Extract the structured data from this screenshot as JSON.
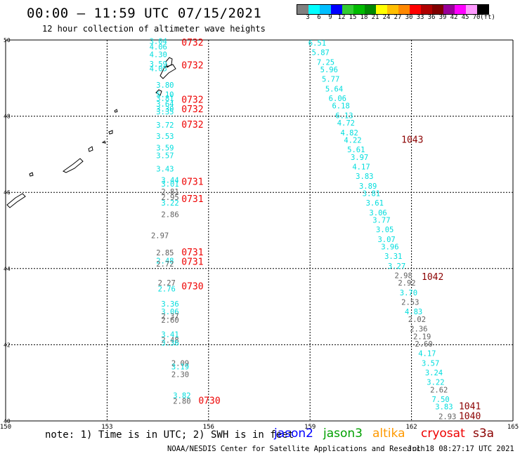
{
  "title": "00:00 – 11:59 UTC 07/15/2021",
  "subtitle": "12 hour collection of altimeter wave heights",
  "colorbar": {
    "colors": [
      "#808080",
      "#00ffff",
      "#00bfff",
      "#0000ff",
      "#32cd32",
      "#00bb00",
      "#008800",
      "#ffff00",
      "#ffbf00",
      "#ff8800",
      "#ff0000",
      "#b00000",
      "#800000",
      "#990099",
      "#ff00ff",
      "#ff99ff",
      "#000000"
    ],
    "labels": [
      "3",
      "6",
      "9",
      "12",
      "15",
      "18",
      "21",
      "24",
      "27",
      "30",
      "33",
      "36",
      "39",
      "42",
      "45",
      "70",
      "(ft)"
    ]
  },
  "axes": {
    "lon_ticks": [
      "150",
      "153",
      "156",
      "159",
      "162",
      "165"
    ],
    "lat_ticks": [
      "50",
      "48",
      "46",
      "44",
      "42",
      "40"
    ]
  },
  "colors": {
    "cyan": "#00dddd",
    "gray": "#606060",
    "red": "#ee0000",
    "darkred": "#8b0000"
  },
  "chart_data": {
    "type": "scatter",
    "xlim": [
      150,
      165
    ],
    "ylim": [
      40,
      50
    ],
    "grid": true,
    "track_labels": [
      {
        "text": "0732",
        "lon": 155.2,
        "lat": 49.85,
        "color": "red"
      },
      {
        "text": "0732",
        "lon": 155.2,
        "lat": 49.25,
        "color": "red"
      },
      {
        "text": "0732",
        "lon": 155.2,
        "lat": 48.35,
        "color": "red"
      },
      {
        "text": "0732",
        "lon": 155.2,
        "lat": 48.1,
        "color": "red"
      },
      {
        "text": "0732",
        "lon": 155.2,
        "lat": 47.7,
        "color": "red"
      },
      {
        "text": "0731",
        "lon": 155.2,
        "lat": 46.2,
        "color": "red"
      },
      {
        "text": "0731",
        "lon": 155.2,
        "lat": 45.75,
        "color": "red"
      },
      {
        "text": "0731",
        "lon": 155.2,
        "lat": 44.35,
        "color": "red"
      },
      {
        "text": "0731",
        "lon": 155.2,
        "lat": 44.1,
        "color": "red"
      },
      {
        "text": "0730",
        "lon": 155.2,
        "lat": 43.45,
        "color": "red"
      },
      {
        "text": "0730",
        "lon": 155.7,
        "lat": 40.45,
        "color": "red"
      },
      {
        "text": "1043",
        "lon": 161.7,
        "lat": 47.3,
        "color": "darkred"
      },
      {
        "text": "1042",
        "lon": 162.3,
        "lat": 43.7,
        "color": "darkred"
      },
      {
        "text": "1041",
        "lon": 163.4,
        "lat": 40.3,
        "color": "darkred"
      },
      {
        "text": "1040",
        "lon": 163.4,
        "lat": 40.05,
        "color": "darkred"
      }
    ],
    "swh_points": [
      {
        "text": "3.04",
        "lon": 154.25,
        "lat": 49.9,
        "color": "cyan"
      },
      {
        "text": "4.06",
        "lon": 154.25,
        "lat": 49.75,
        "color": "cyan"
      },
      {
        "text": "4.30",
        "lon": 154.25,
        "lat": 49.55,
        "color": "cyan"
      },
      {
        "text": "3.59",
        "lon": 154.25,
        "lat": 49.3,
        "color": "cyan"
      },
      {
        "text": "4.05",
        "lon": 154.25,
        "lat": 49.18,
        "color": "cyan"
      },
      {
        "text": "3.80",
        "lon": 154.45,
        "lat": 48.75,
        "color": "cyan"
      },
      {
        "text": "5.10",
        "lon": 154.45,
        "lat": 48.5,
        "color": "cyan"
      },
      {
        "text": "3.81",
        "lon": 154.45,
        "lat": 48.4,
        "color": "cyan"
      },
      {
        "text": "3.64",
        "lon": 154.45,
        "lat": 48.25,
        "color": "cyan"
      },
      {
        "text": "3.30",
        "lon": 154.45,
        "lat": 48.12,
        "color": "cyan"
      },
      {
        "text": "3.35",
        "lon": 154.45,
        "lat": 48.05,
        "color": "cyan"
      },
      {
        "text": "3.72",
        "lon": 154.45,
        "lat": 47.7,
        "color": "cyan"
      },
      {
        "text": "3.53",
        "lon": 154.45,
        "lat": 47.4,
        "color": "cyan"
      },
      {
        "text": "3.59",
        "lon": 154.45,
        "lat": 47.1,
        "color": "cyan"
      },
      {
        "text": "3.57",
        "lon": 154.45,
        "lat": 46.9,
        "color": "cyan"
      },
      {
        "text": "3.43",
        "lon": 154.45,
        "lat": 46.55,
        "color": "cyan"
      },
      {
        "text": "3.44",
        "lon": 154.6,
        "lat": 46.25,
        "color": "cyan"
      },
      {
        "text": "3.01",
        "lon": 154.6,
        "lat": 46.15,
        "color": "cyan"
      },
      {
        "text": "2.81",
        "lon": 154.6,
        "lat": 45.95,
        "color": "gray"
      },
      {
        "text": "2.95",
        "lon": 154.6,
        "lat": 45.8,
        "color": "gray"
      },
      {
        "text": "3.22",
        "lon": 154.6,
        "lat": 45.65,
        "color": "cyan"
      },
      {
        "text": "2.86",
        "lon": 154.6,
        "lat": 45.35,
        "color": "gray"
      },
      {
        "text": "2.97",
        "lon": 154.3,
        "lat": 44.8,
        "color": "gray"
      },
      {
        "text": "2.85",
        "lon": 154.45,
        "lat": 44.35,
        "color": "gray"
      },
      {
        "text": "2.48",
        "lon": 154.45,
        "lat": 44.13,
        "color": "cyan"
      },
      {
        "text": "2.72",
        "lon": 154.45,
        "lat": 44.05,
        "color": "gray"
      },
      {
        "text": "2.27",
        "lon": 154.5,
        "lat": 43.55,
        "color": "gray"
      },
      {
        "text": "2.76",
        "lon": 154.5,
        "lat": 43.4,
        "color": "cyan"
      },
      {
        "text": "3.36",
        "lon": 154.6,
        "lat": 43.0,
        "color": "cyan"
      },
      {
        "text": "3.06",
        "lon": 154.6,
        "lat": 42.8,
        "color": "cyan"
      },
      {
        "text": "2.37",
        "lon": 154.6,
        "lat": 42.68,
        "color": "gray"
      },
      {
        "text": "2.60",
        "lon": 154.6,
        "lat": 42.58,
        "color": "gray"
      },
      {
        "text": "3.41",
        "lon": 154.6,
        "lat": 42.2,
        "color": "cyan"
      },
      {
        "text": "2.48",
        "lon": 154.6,
        "lat": 42.05,
        "color": "gray"
      },
      {
        "text": "3.36",
        "lon": 154.6,
        "lat": 41.98,
        "color": "cyan"
      },
      {
        "text": "2.09",
        "lon": 154.9,
        "lat": 41.45,
        "color": "gray"
      },
      {
        "text": "3.19",
        "lon": 154.9,
        "lat": 41.35,
        "color": "cyan"
      },
      {
        "text": "2.30",
        "lon": 154.9,
        "lat": 41.15,
        "color": "gray"
      },
      {
        "text": "3.82",
        "lon": 154.95,
        "lat": 40.6,
        "color": "cyan"
      },
      {
        "text": "2.80",
        "lon": 154.95,
        "lat": 40.45,
        "color": "gray"
      },
      {
        "text": "6.51",
        "lon": 158.95,
        "lat": 49.85,
        "color": "cyan"
      },
      {
        "text": "5.87",
        "lon": 159.05,
        "lat": 49.6,
        "color": "cyan"
      },
      {
        "text": "7.25",
        "lon": 159.2,
        "lat": 49.35,
        "color": "cyan"
      },
      {
        "text": "5.96",
        "lon": 159.3,
        "lat": 49.15,
        "color": "cyan"
      },
      {
        "text": "5.77",
        "lon": 159.35,
        "lat": 48.9,
        "color": "cyan"
      },
      {
        "text": "5.64",
        "lon": 159.45,
        "lat": 48.65,
        "color": "cyan"
      },
      {
        "text": "6.06",
        "lon": 159.55,
        "lat": 48.4,
        "color": "cyan"
      },
      {
        "text": "6.18",
        "lon": 159.65,
        "lat": 48.2,
        "color": "cyan"
      },
      {
        "text": "6.13",
        "lon": 159.75,
        "lat": 47.95,
        "color": "cyan"
      },
      {
        "text": "4.72",
        "lon": 159.8,
        "lat": 47.75,
        "color": "cyan"
      },
      {
        "text": "4.82",
        "lon": 159.9,
        "lat": 47.5,
        "color": "cyan"
      },
      {
        "text": "4.22",
        "lon": 160.0,
        "lat": 47.3,
        "color": "cyan"
      },
      {
        "text": "5.61",
        "lon": 160.1,
        "lat": 47.05,
        "color": "cyan"
      },
      {
        "text": "3.97",
        "lon": 160.2,
        "lat": 46.85,
        "color": "cyan"
      },
      {
        "text": "4.17",
        "lon": 160.25,
        "lat": 46.6,
        "color": "cyan"
      },
      {
        "text": "3.83",
        "lon": 160.35,
        "lat": 46.35,
        "color": "cyan"
      },
      {
        "text": "3.89",
        "lon": 160.45,
        "lat": 46.1,
        "color": "cyan"
      },
      {
        "text": "3.81",
        "lon": 160.55,
        "lat": 45.9,
        "color": "cyan"
      },
      {
        "text": "3.61",
        "lon": 160.65,
        "lat": 45.65,
        "color": "cyan"
      },
      {
        "text": "3.06",
        "lon": 160.75,
        "lat": 45.4,
        "color": "cyan"
      },
      {
        "text": "3.77",
        "lon": 160.85,
        "lat": 45.2,
        "color": "cyan"
      },
      {
        "text": "3.05",
        "lon": 160.95,
        "lat": 44.95,
        "color": "cyan"
      },
      {
        "text": "3.07",
        "lon": 161.0,
        "lat": 44.7,
        "color": "cyan"
      },
      {
        "text": "3.96",
        "lon": 161.1,
        "lat": 44.5,
        "color": "cyan"
      },
      {
        "text": "3.31",
        "lon": 161.2,
        "lat": 44.25,
        "color": "cyan"
      },
      {
        "text": "3.27",
        "lon": 161.3,
        "lat": 44.0,
        "color": "cyan"
      },
      {
        "text": "2.98",
        "lon": 161.5,
        "lat": 43.75,
        "color": "gray"
      },
      {
        "text": "2.92",
        "lon": 161.6,
        "lat": 43.55,
        "color": "gray"
      },
      {
        "text": "3.70",
        "lon": 161.65,
        "lat": 43.3,
        "color": "cyan"
      },
      {
        "text": "2.53",
        "lon": 161.7,
        "lat": 43.05,
        "color": "gray"
      },
      {
        "text": "4.83",
        "lon": 161.8,
        "lat": 42.8,
        "color": "cyan"
      },
      {
        "text": "2.02",
        "lon": 161.9,
        "lat": 42.6,
        "color": "gray"
      },
      {
        "text": "2.36",
        "lon": 161.95,
        "lat": 42.35,
        "color": "gray"
      },
      {
        "text": "2.19",
        "lon": 162.05,
        "lat": 42.15,
        "color": "gray"
      },
      {
        "text": "2.60",
        "lon": 162.1,
        "lat": 41.95,
        "color": "gray"
      },
      {
        "text": "4.17",
        "lon": 162.2,
        "lat": 41.7,
        "color": "cyan"
      },
      {
        "text": "3.57",
        "lon": 162.3,
        "lat": 41.45,
        "color": "cyan"
      },
      {
        "text": "3.24",
        "lon": 162.4,
        "lat": 41.2,
        "color": "cyan"
      },
      {
        "text": "3.22",
        "lon": 162.45,
        "lat": 40.95,
        "color": "cyan"
      },
      {
        "text": "2.62",
        "lon": 162.55,
        "lat": 40.75,
        "color": "gray"
      },
      {
        "text": "7.50",
        "lon": 162.6,
        "lat": 40.5,
        "color": "cyan"
      },
      {
        "text": "3.83",
        "lon": 162.7,
        "lat": 40.3,
        "color": "cyan"
      },
      {
        "text": "2.93",
        "lon": 162.8,
        "lat": 40.05,
        "color": "gray"
      }
    ]
  },
  "note": "note: 1) Time is in UTC; 2) SWH is in feet",
  "legend": [
    {
      "name": "jason2",
      "color": "#0000ff"
    },
    {
      "name": "jason3",
      "color": "#00a000"
    },
    {
      "name": "altika",
      "color": "#ff9900"
    },
    {
      "name": "cryosat",
      "color": "#ee0000"
    },
    {
      "name": "s3a",
      "color": "#8b0000"
    }
  ],
  "credit": "NOAA/NESDIS Center for Satellite Applications and Research",
  "timestamp": "Jul 18 08:27:17 UTC 2021"
}
